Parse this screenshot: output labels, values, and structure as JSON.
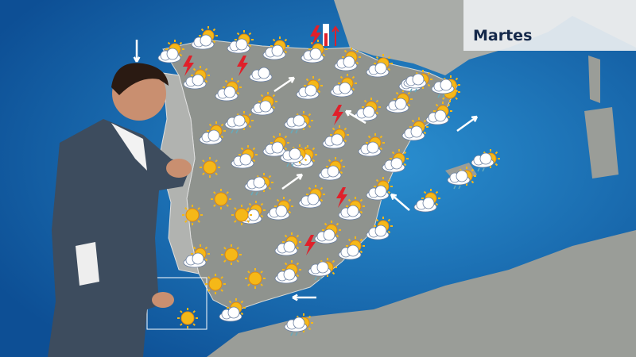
{
  "broadcast": {
    "day_label": "Martes",
    "colors": {
      "sea": "#1466ad",
      "land": "#8f938e",
      "label_text": "#14284a",
      "lightning": "#e0202a",
      "sun": "#f5b818"
    },
    "icon_types": [
      "sun-icon",
      "sun-cloud-icon",
      "cloud-icon",
      "sun-cloud-rain-icon",
      "lightning-icon",
      "wind-arrow-icon",
      "temperature-rise-icon"
    ]
  }
}
